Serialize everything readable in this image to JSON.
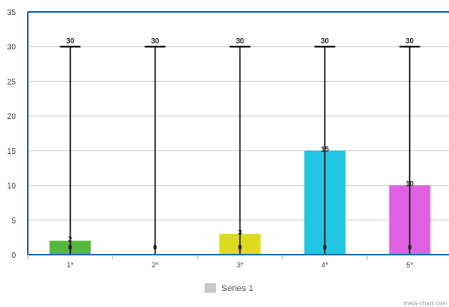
{
  "chart_data": {
    "type": "bar",
    "categories": [
      "1*",
      "2*",
      "3*",
      "4*",
      "5*"
    ],
    "series": [
      {
        "name": "Series 1",
        "values": [
          2,
          0,
          3,
          15,
          10
        ],
        "colors": [
          "#55b83a",
          "#bbbbbb",
          "#dcdc1c",
          "#22c6e2",
          "#e062e2"
        ],
        "error_low": [
          0,
          0,
          0,
          0,
          0
        ],
        "error_high": [
          30,
          30,
          30,
          30,
          30
        ]
      }
    ],
    "ylim": [
      0,
      35
    ],
    "yticks": [
      0,
      5,
      10,
      15,
      20,
      25,
      30,
      35
    ],
    "grid": true,
    "legend_position": "bottom",
    "legend_swatch_color": "#c8c8c8",
    "watermark": "meta-chart.com",
    "colors": {
      "axis": "#1e6fb0",
      "grid": "#cccccc",
      "errorbar": "#000000"
    }
  }
}
